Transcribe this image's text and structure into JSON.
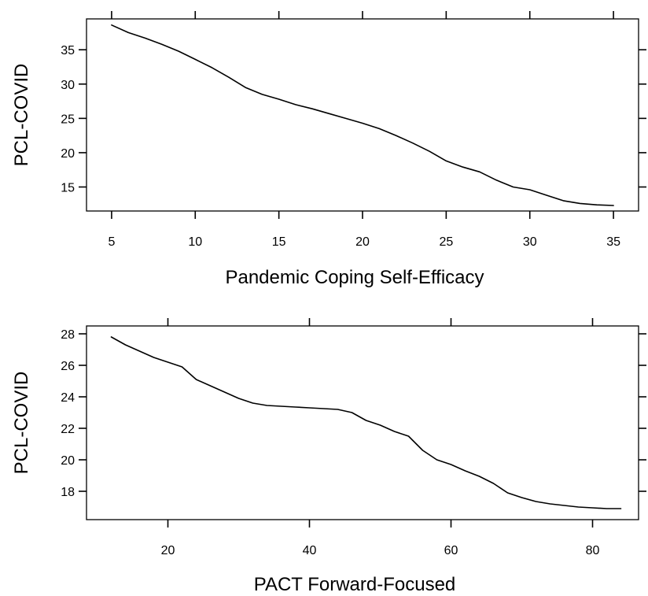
{
  "chart_data": [
    {
      "type": "line",
      "xlabel": "Pandemic Coping Self-Efficacy",
      "ylabel": "PCL-COVID",
      "xlim": [
        3.5,
        36.5
      ],
      "ylim": [
        11.5,
        39.5
      ],
      "x_ticks": [
        5,
        10,
        15,
        20,
        25,
        30,
        35
      ],
      "y_ticks": [
        15,
        20,
        25,
        30,
        35
      ],
      "grid": false,
      "series": [
        {
          "x": [
            5,
            6,
            7,
            8,
            9,
            10,
            11,
            12,
            13,
            14,
            15,
            16,
            17,
            18,
            19,
            20,
            21,
            22,
            23,
            24,
            25,
            26,
            27,
            28,
            29,
            30,
            31,
            32,
            33,
            34,
            35
          ],
          "y": [
            38.6,
            37.5,
            36.7,
            35.8,
            34.8,
            33.6,
            32.4,
            31.0,
            29.5,
            28.5,
            27.8,
            27.0,
            26.4,
            25.7,
            25.0,
            24.3,
            23.5,
            22.5,
            21.4,
            20.2,
            18.8,
            17.9,
            17.2,
            16.0,
            15.0,
            14.6,
            13.8,
            13.0,
            12.6,
            12.4,
            12.3
          ]
        }
      ]
    },
    {
      "type": "line",
      "xlabel": "PACT Forward-Focused",
      "ylabel": "PCL-COVID",
      "xlim": [
        8.5,
        86.5
      ],
      "ylim": [
        16.2,
        28.5
      ],
      "x_ticks": [
        20,
        40,
        60,
        80
      ],
      "y_ticks": [
        18,
        20,
        22,
        24,
        26,
        28
      ],
      "grid": false,
      "series": [
        {
          "x": [
            12,
            14,
            16,
            18,
            20,
            22,
            24,
            26,
            28,
            30,
            32,
            34,
            36,
            38,
            40,
            42,
            44,
            46,
            48,
            50,
            52,
            54,
            56,
            58,
            60,
            62,
            64,
            66,
            68,
            70,
            72,
            74,
            76,
            78,
            80,
            82,
            84
          ],
          "y": [
            27.8,
            27.3,
            26.9,
            26.5,
            26.2,
            25.9,
            25.1,
            24.7,
            24.3,
            23.9,
            23.6,
            23.45,
            23.4,
            23.35,
            23.3,
            23.25,
            23.2,
            23.0,
            22.5,
            22.2,
            21.8,
            21.5,
            20.6,
            20.0,
            19.7,
            19.3,
            18.95,
            18.5,
            17.9,
            17.6,
            17.35,
            17.2,
            17.1,
            17.0,
            16.95,
            16.9,
            16.9
          ]
        }
      ]
    }
  ]
}
